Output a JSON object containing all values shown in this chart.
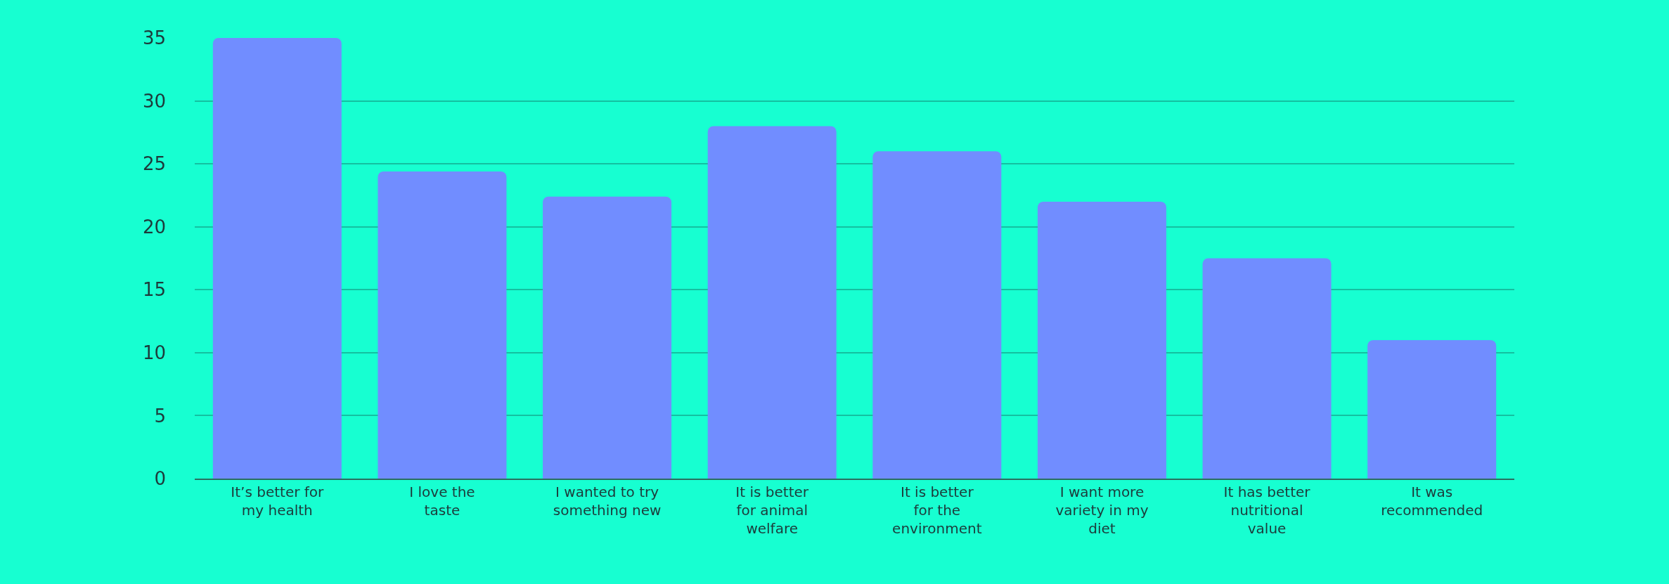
{
  "chart_data": {
    "type": "bar",
    "categories": [
      "It’s better for my health",
      "I love the taste",
      "I wanted to try something new",
      "It is better for animal welfare",
      "It is better for the environment",
      "I want more variety in my diet",
      "It has better nutritional value",
      "It was recommended"
    ],
    "values": [
      35,
      24.4,
      22.4,
      28,
      26,
      22,
      17.5,
      11
    ],
    "color": "#718dff",
    "ylim": [
      0,
      35
    ],
    "yticks": [
      0,
      5,
      10,
      15,
      20,
      25,
      30,
      35
    ],
    "grid": "y"
  }
}
